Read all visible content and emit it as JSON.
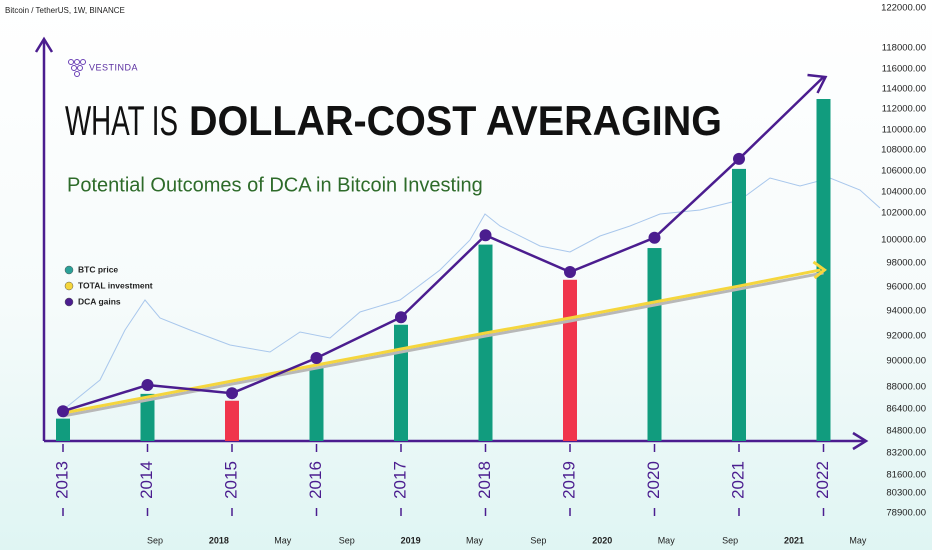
{
  "header": "Bitcoin / TetherUS, 1W, BINANCE",
  "logo": "VESTINDA",
  "chart_data": {
    "type": "bar",
    "title_lead": "WHAT IS",
    "title": "DOLLAR-COST AVERAGING",
    "subtitle": "Potential Outcomes of DCA in Bitcoin Investing",
    "categories": [
      "2013",
      "2014",
      "2015",
      "2016",
      "2017",
      "2018",
      "2019",
      "2020",
      "2021",
      "2022"
    ],
    "series": [
      {
        "name": "BTC price",
        "color": "#2aa198",
        "values": [
          85700,
          87500,
          87000,
          89500,
          92900,
          99600,
          96600,
          99300,
          106200,
          113000
        ],
        "bar_colors": [
          "#119c7e",
          "#119c7e",
          "#f0354c",
          "#119c7e",
          "#119c7e",
          "#119c7e",
          "#f0354c",
          "#119c7e",
          "#119c7e",
          "#119c7e"
        ]
      },
      {
        "name": "TOTAL investment",
        "color": "#f5d63d",
        "values": [
          86110,
          87270,
          88460,
          89690,
          90960,
          92240,
          93440,
          94750,
          96080,
          97420
        ]
      },
      {
        "name": "DCA gains",
        "color": "#4b1d8f",
        "values": [
          86240,
          88150,
          87550,
          90240,
          93500,
          100350,
          97250,
          100170,
          107150,
          115200
        ]
      }
    ],
    "yticks": [
      {
        "value": 122000,
        "label": "122000.00"
      },
      {
        "value": 118000,
        "label": "118000.00"
      },
      {
        "value": 116000,
        "label": "116000.00"
      },
      {
        "value": 114000,
        "label": "114000.00"
      },
      {
        "value": 112000,
        "label": "112000.00"
      },
      {
        "value": 110000,
        "label": "110000.00"
      },
      {
        "value": 108000,
        "label": "108000.00"
      },
      {
        "value": 106000,
        "label": "106000.00"
      },
      {
        "value": 104000,
        "label": "104000.00"
      },
      {
        "value": 102000,
        "label": "102000.00"
      },
      {
        "value": 100000,
        "label": "100000.00"
      },
      {
        "value": 98000,
        "label": "98000.00"
      },
      {
        "value": 96000,
        "label": "96000.00"
      },
      {
        "value": 94000,
        "label": "94000.00"
      },
      {
        "value": 92000,
        "label": "92000.00"
      },
      {
        "value": 90000,
        "label": "90000.00"
      },
      {
        "value": 88000,
        "label": "88000.00"
      },
      {
        "value": 86400,
        "label": "86400.00"
      },
      {
        "value": 84800,
        "label": "84800.00"
      },
      {
        "value": 83200,
        "label": "83200.00"
      },
      {
        "value": 81600,
        "label": "81600.00"
      },
      {
        "value": 80300,
        "label": "80300.00"
      },
      {
        "value": 78900,
        "label": "78900.00"
      }
    ],
    "time_labels": [
      "Sep",
      "2018",
      "May",
      "Sep",
      "2019",
      "May",
      "Sep",
      "2020",
      "May",
      "Sep",
      "2021",
      "May"
    ]
  }
}
